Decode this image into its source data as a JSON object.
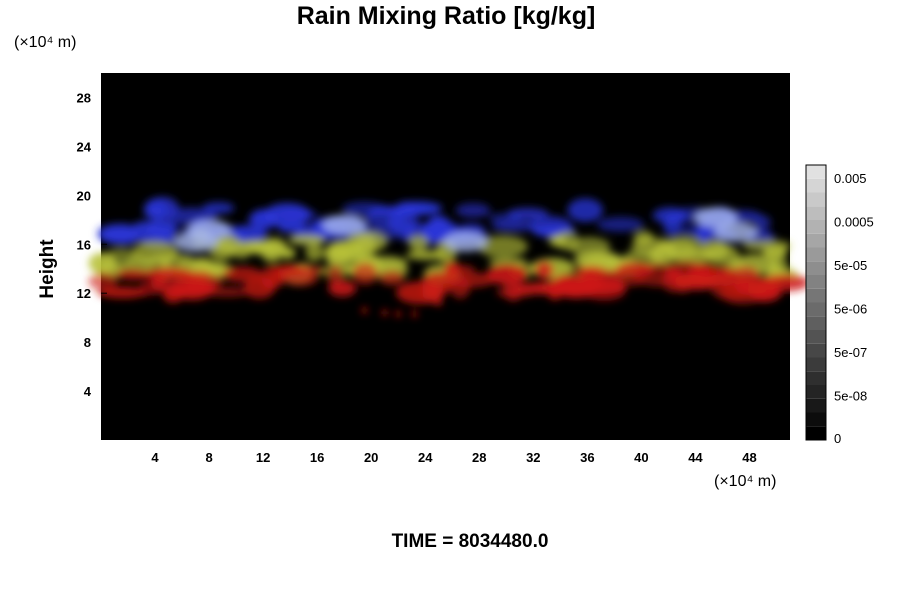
{
  "chart_data": {
    "type": "heatmap",
    "title": "Rain Mixing Ratio [kg/kg]",
    "ylabel": "Height",
    "xunit": "(×10⁴ m)",
    "yunit": "(×10⁴ m)",
    "footer": "TIME = 8034480.0",
    "xlim": [
      0,
      51
    ],
    "ylim": [
      0,
      30
    ],
    "xticks": [
      4,
      8,
      12,
      16,
      20,
      24,
      28,
      32,
      36,
      40,
      44,
      48
    ],
    "yticks": [
      4,
      8,
      12,
      16,
      20,
      24,
      28
    ],
    "background_color": "#000000",
    "colorbar": {
      "labels": [
        "0.005",
        "0.0005",
        "5e-05",
        "5e-06",
        "5e-07",
        "5e-08",
        "0"
      ],
      "levels": 20
    },
    "layers": [
      {
        "color": "#2a35d8",
        "band": [
          16.5,
          19.0
        ]
      },
      {
        "color": "#b8c23a",
        "band": [
          13.5,
          16.5
        ]
      },
      {
        "color": "#cc1a14",
        "band": [
          12.0,
          14.0
        ]
      }
    ]
  }
}
